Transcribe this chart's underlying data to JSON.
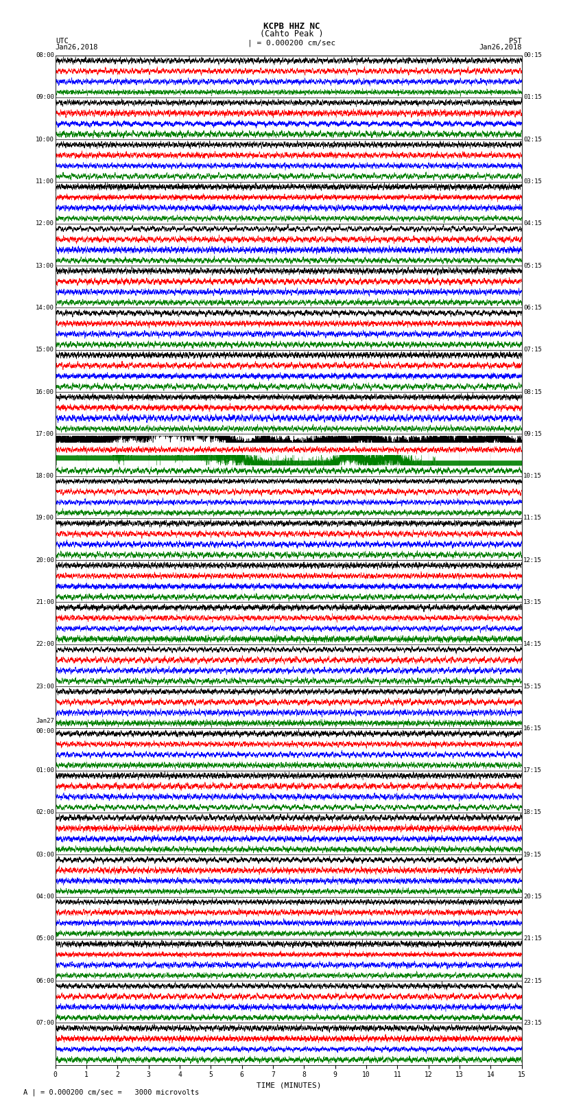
{
  "title_line1": "KCPB HHZ NC",
  "title_line2": "(Cahto Peak )",
  "scale_label": "| = 0.000200 cm/sec",
  "bottom_label": "A | = 0.000200 cm/sec =   3000 microvolts",
  "xlabel": "TIME (MINUTES)",
  "left_header_line1": "UTC",
  "left_header_line2": "Jan26,2018",
  "right_header_line1": "PST",
  "right_header_line2": "Jan26,2018",
  "left_times_utc": [
    "08:00",
    "09:00",
    "10:00",
    "11:00",
    "12:00",
    "13:00",
    "14:00",
    "15:00",
    "16:00",
    "17:00",
    "18:00",
    "19:00",
    "20:00",
    "21:00",
    "22:00",
    "23:00",
    "Jan27\n00:00",
    "01:00",
    "02:00",
    "03:00",
    "04:00",
    "05:00",
    "06:00",
    "07:00"
  ],
  "right_times_pst": [
    "00:15",
    "01:15",
    "02:15",
    "03:15",
    "04:15",
    "05:15",
    "06:15",
    "07:15",
    "08:15",
    "09:15",
    "10:15",
    "11:15",
    "12:15",
    "13:15",
    "14:15",
    "15:15",
    "16:15",
    "17:15",
    "18:15",
    "19:15",
    "20:15",
    "21:15",
    "22:15",
    "23:15"
  ],
  "num_hours": 24,
  "minutes_per_row": 15,
  "colors_order": [
    "black",
    "red",
    "blue",
    "green"
  ],
  "bg_color": "white",
  "figsize": [
    8.5,
    16.13
  ],
  "dpi": 100,
  "earthquake_hour": 9,
  "earthquake_sub": 2
}
